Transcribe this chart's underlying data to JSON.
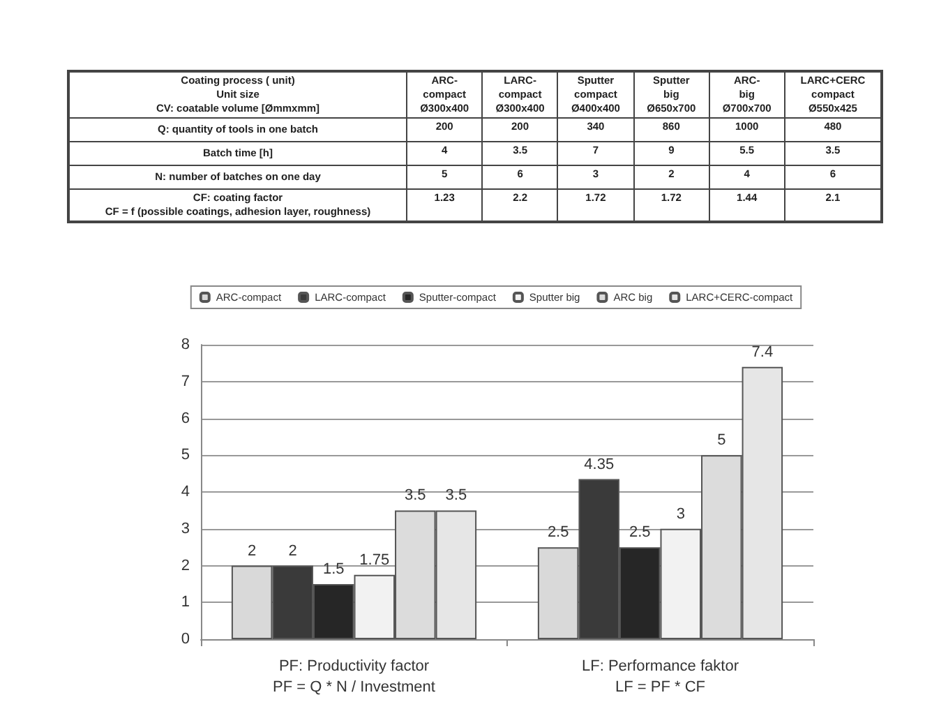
{
  "chart_data": [
    {
      "type": "other",
      "title": "Coating process ( unit)\nUnit size\nCV: coatable volume [Ømmxmm]",
      "categories": [
        "ARC-\ncompact\nØ300x400",
        "LARC-\ncompact\nØ300x400",
        "Sputter\ncompact\nØ400x400",
        "Sputter\nbig\nØ650x700",
        "ARC-\nbig\nØ700x700",
        "LARC+CERC\ncompact\nØ550x425"
      ],
      "y_categories": [
        "Q: quantity of tools in one batch",
        "Batch time [h]",
        "N: number of batches on one day",
        "CF: coating factor\nCF = f (possible coatings, adhesion layer, roughness)"
      ],
      "cell_labels": [
        [
          "200",
          "200",
          "340",
          "860",
          "1000",
          "480"
        ],
        [
          "4",
          "3.5",
          "7",
          "9",
          "5.5",
          "3.5"
        ],
        [
          "5",
          "6",
          "3",
          "2",
          "4",
          "6"
        ],
        [
          "1.23",
          "2.2",
          "1.72",
          "1.72",
          "1.44",
          "2.1"
        ]
      ]
    },
    {
      "type": "bar",
      "categories": [
        "PF: Productivity factor\nPF = Q * N / Investment",
        "LF: Performance faktor\nLF = PF * CF"
      ],
      "series": [
        {
          "name": "ARC-compact",
          "color": "#d9d9d9",
          "values": [
            2,
            2.5
          ]
        },
        {
          "name": "LARC-compact",
          "color": "#3a3a3a",
          "values": [
            2,
            4.35
          ]
        },
        {
          "name": "Sputter-compact",
          "color": "#262626",
          "values": [
            1.5,
            2.5
          ]
        },
        {
          "name": "Sputter big",
          "color": "#f2f2f2",
          "values": [
            1.75,
            3
          ]
        },
        {
          "name": "ARC big",
          "color": "#dcdcdc",
          "values": [
            3.5,
            5
          ]
        },
        {
          "name": "LARC+CERC-compact",
          "color": "#e6e6e6",
          "values": [
            3.5,
            7.4
          ]
        }
      ],
      "ylim": [
        0,
        8
      ],
      "yticks": [
        0,
        1,
        2,
        3,
        4,
        5,
        6,
        7,
        8
      ],
      "grid": "y",
      "legend": "top",
      "data_labels": true
    }
  ]
}
